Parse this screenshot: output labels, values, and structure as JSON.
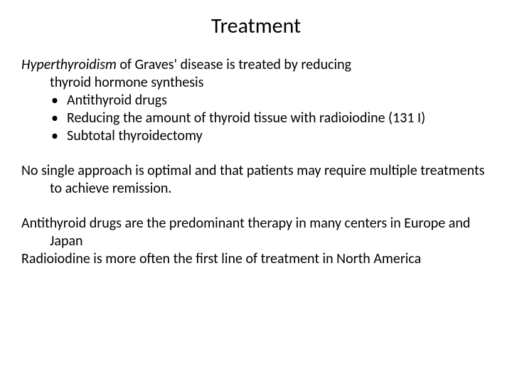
{
  "title": "Treatment",
  "intro": {
    "emphasis": "Hyperthyroidism",
    "rest": " of Graves' disease is treated by reducing",
    "cont": "thyroid hormone synthesis"
  },
  "bullets": [
    "Antithyroid drugs",
    "Reducing the amount of thyroid tissue with radioiodine (131 I)",
    "Subtotal thyroidectomy"
  ],
  "para2": "No single approach is optimal and that patients may require multiple treatments to achieve remission.",
  "para3": "Antithyroid drugs are the predominant therapy in many centers in Europe and Japan",
  "para4": "Radioiodine is more often the first line of treatment in North America",
  "colors": {
    "background": "#ffffff",
    "text": "#000000"
  },
  "typography": {
    "title_fontsize": 30,
    "body_fontsize": 20,
    "font_family": "Calibri"
  }
}
